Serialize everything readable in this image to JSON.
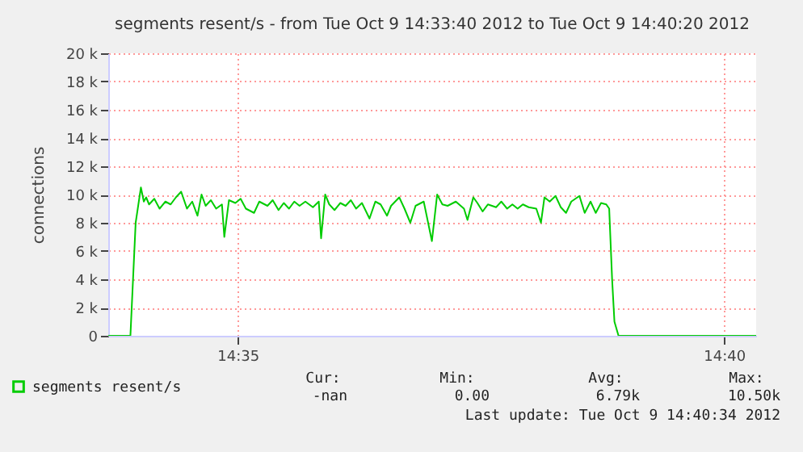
{
  "chart_data": {
    "type": "line",
    "title": "segments resent/s - from Tue Oct  9 14:33:40 2012 to Tue Oct  9 14:40:20 2012",
    "ylabel": "connections",
    "xlim": [
      14.5611,
      14.6722
    ],
    "xticks": [
      {
        "value": 14.5833,
        "label": "14:35"
      },
      {
        "value": 14.6667,
        "label": "14:40"
      }
    ],
    "ylim": [
      0,
      20000
    ],
    "yticks": [
      {
        "value": 0,
        "label": "0"
      },
      {
        "value": 2000,
        "label": "2 k"
      },
      {
        "value": 4000,
        "label": "4 k"
      },
      {
        "value": 6000,
        "label": "6 k"
      },
      {
        "value": 8000,
        "label": "8 k"
      },
      {
        "value": 10000,
        "label": "10 k"
      },
      {
        "value": 12000,
        "label": "12 k"
      },
      {
        "value": 14000,
        "label": "14 k"
      },
      {
        "value": 16000,
        "label": "16 k"
      },
      {
        "value": 18000,
        "label": "18 k"
      },
      {
        "value": 20000,
        "label": "20 k"
      }
    ],
    "grid": true,
    "legend": "bottom",
    "marker": "none",
    "line_style": "solid",
    "series": [
      {
        "name": "segments resent/s",
        "color": "#00cc00",
        "x": [
          14.5611,
          14.5649,
          14.5658,
          14.5667,
          14.5672,
          14.5676,
          14.5681,
          14.569,
          14.5699,
          14.5709,
          14.5718,
          14.5727,
          14.5736,
          14.5746,
          14.5755,
          14.5764,
          14.5771,
          14.5778,
          14.5787,
          14.5796,
          14.5806,
          14.581,
          14.5818,
          14.5829,
          14.5838,
          14.5847,
          14.5861,
          14.587,
          14.5884,
          14.5893,
          14.5903,
          14.5912,
          14.5921,
          14.593,
          14.5939,
          14.5949,
          14.5962,
          14.5972,
          14.5976,
          14.5983,
          14.599,
          14.5999,
          14.6009,
          14.6018,
          14.6027,
          14.6036,
          14.6046,
          14.6059,
          14.6069,
          14.6078,
          14.6089,
          14.6096,
          14.611,
          14.6119,
          14.6129,
          14.6138,
          14.6152,
          14.6166,
          14.6175,
          14.6184,
          14.6193,
          14.6207,
          14.6221,
          14.6227,
          14.6237,
          14.6244,
          14.6253,
          14.6262,
          14.6276,
          14.6285,
          14.6295,
          14.6304,
          14.6313,
          14.6322,
          14.6332,
          14.6345,
          14.6353,
          14.6359,
          14.6368,
          14.6378,
          14.6387,
          14.6396,
          14.6405,
          14.6419,
          14.6428,
          14.6438,
          14.6447,
          14.6456,
          14.6465,
          14.647,
          14.6475,
          14.6479,
          14.6486,
          14.6722
        ],
        "values": [
          0,
          0,
          8000,
          10500,
          9500,
          9800,
          9300,
          9700,
          9000,
          9500,
          9300,
          9800,
          10200,
          9000,
          9500,
          8500,
          10000,
          9200,
          9600,
          9000,
          9300,
          7000,
          9600,
          9400,
          9700,
          9000,
          8700,
          9500,
          9200,
          9600,
          8900,
          9400,
          9000,
          9500,
          9200,
          9500,
          9100,
          9500,
          6900,
          10000,
          9300,
          8900,
          9400,
          9200,
          9600,
          9000,
          9400,
          8300,
          9500,
          9300,
          8500,
          9200,
          9800,
          9000,
          8000,
          9200,
          9500,
          6700,
          10000,
          9300,
          9200,
          9500,
          9000,
          8200,
          9800,
          9400,
          8800,
          9300,
          9100,
          9500,
          9000,
          9300,
          9000,
          9300,
          9100,
          9000,
          8000,
          9800,
          9500,
          9900,
          9100,
          8700,
          9500,
          9900,
          8700,
          9500,
          8700,
          9400,
          9300,
          9000,
          4000,
          1000,
          0,
          0
        ]
      }
    ],
    "annotations": [
      "Cur:",
      "Min:",
      "Avg:",
      "Max:",
      "-nan",
      "0.00",
      "6.79k",
      "10.50k",
      "Last update: Tue Oct  9 14:40:34 2012"
    ]
  }
}
